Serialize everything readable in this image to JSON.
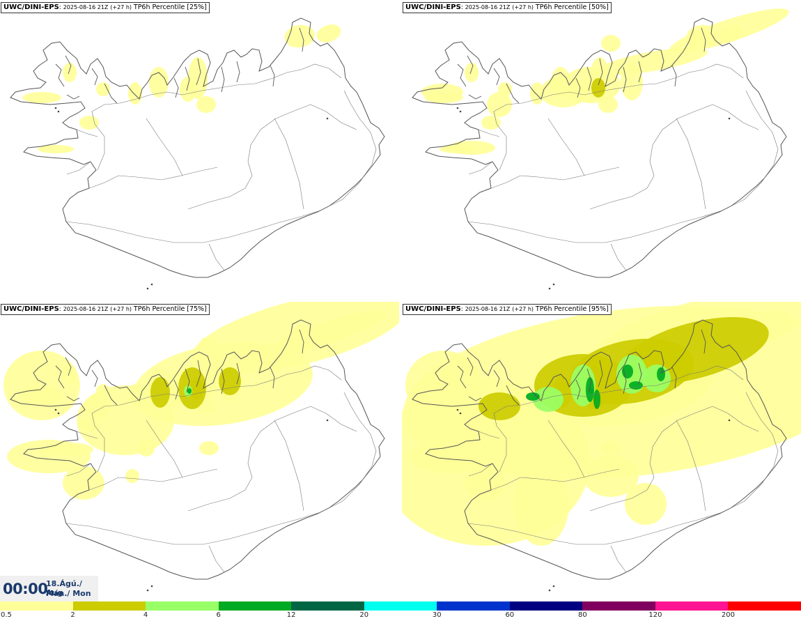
{
  "panels": [
    {
      "model": "UWC/DINI-EPS",
      "sep": ":",
      "run": "2025-08-16 21Z",
      "lead": "(+27 h)",
      "product": "TP6h Percentile",
      "percentile_label": "[25%]",
      "level": 1
    },
    {
      "model": "UWC/DINI-EPS",
      "sep": ":",
      "run": "2025-08-16 21Z",
      "lead": "(+27 h)",
      "product": "TP6h Percentile",
      "percentile_label": "[50%]",
      "level": 2
    },
    {
      "model": "UWC/DINI-EPS",
      "sep": ":",
      "run": "2025-08-16 21Z",
      "lead": "(+27 h)",
      "product": "TP6h Percentile",
      "percentile_label": "[75%]",
      "level": 3
    },
    {
      "model": "UWC/DINI-EPS",
      "sep": ":",
      "run": "2025-08-16 21Z",
      "lead": "(+27 h)",
      "product": "TP6h Percentile",
      "percentile_label": "[95%]",
      "level": 4
    }
  ],
  "timebox": {
    "time": "00:00",
    "date_line": "18.Ágú./ Aug",
    "day_line": "Mán./ Mon"
  },
  "colorbar": {
    "colors": [
      "#ffff99",
      "#cccc00",
      "#99ff66",
      "#00aa22",
      "#006644",
      "#00ffee",
      "#0033cc",
      "#000080",
      "#800060",
      "#ff1493",
      "#ff0000"
    ],
    "labels": [
      "0.5",
      "2",
      "4",
      "6",
      "12",
      "20",
      "30",
      "60",
      "80",
      "120",
      "200"
    ]
  },
  "styles": {
    "coast": "#555555",
    "background": "#ffffff"
  }
}
